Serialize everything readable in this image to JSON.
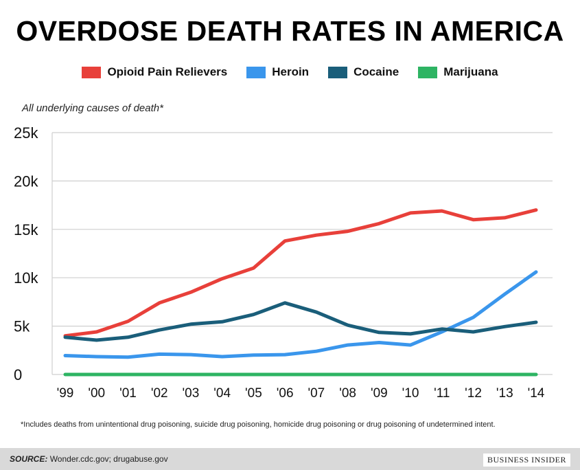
{
  "header": {
    "title": "OVERDOSE DEATH RATES IN AMERICA",
    "subtitle": "All underlying causes of death*"
  },
  "footer": {
    "footnote": "*Includes deaths from unintentional drug poisoning, suicide drug poisoning, homicide drug poisoning or drug poisoning of undetermined intent.",
    "source_label": "SOURCE:",
    "source_text": "Wonder.cdc.gov; drugabuse.gov",
    "brand": "BUSINESS INSIDER"
  },
  "chart_data": {
    "type": "line",
    "title": "OVERDOSE DEATH RATES IN AMERICA",
    "subtitle": "All underlying causes of death*",
    "xlabel": "",
    "ylabel": "",
    "categories": [
      "'99",
      "'00",
      "'01",
      "'02",
      "'03",
      "'04",
      "'05",
      "'06",
      "'07",
      "'08",
      "'09",
      "'10",
      "'11",
      "'12",
      "'13",
      "'14"
    ],
    "yticks": [
      "0",
      "5k",
      "10k",
      "15k",
      "20k",
      "25k"
    ],
    "ylim": [
      0,
      25000
    ],
    "grid": "horizontal",
    "legend": "top-center",
    "series": [
      {
        "name": "Opioid Pain Relievers",
        "color": "#e8403a",
        "values": [
          4000,
          4400,
          5500,
          7400,
          8500,
          9900,
          11000,
          13800,
          14400,
          14800,
          15600,
          16700,
          16900,
          16000,
          16200,
          17000
        ]
      },
      {
        "name": "Heroin",
        "color": "#3a96ec",
        "values": [
          1950,
          1850,
          1800,
          2100,
          2050,
          1850,
          2000,
          2050,
          2400,
          3050,
          3300,
          3050,
          4400,
          5900,
          8300,
          10600
        ]
      },
      {
        "name": "Cocaine",
        "color": "#1a5e7a",
        "values": [
          3850,
          3550,
          3850,
          4600,
          5200,
          5450,
          6200,
          7400,
          6450,
          5100,
          4350,
          4200,
          4700,
          4400,
          4950,
          5400
        ]
      },
      {
        "name": "Marijuana",
        "color": "#2eb463",
        "values": [
          0,
          0,
          0,
          0,
          0,
          0,
          0,
          0,
          0,
          0,
          0,
          0,
          0,
          0,
          0,
          0
        ]
      }
    ]
  }
}
